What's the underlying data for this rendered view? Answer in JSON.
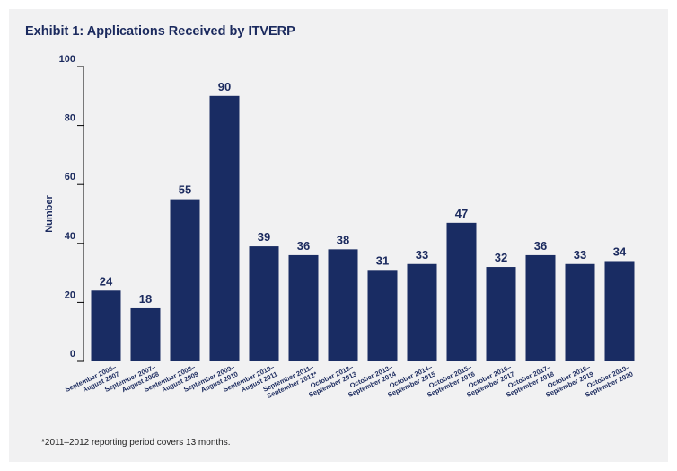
{
  "title": "Exhibit 1: Applications Received by ITVERP",
  "footnote": "*2011–2012 reporting period covers 13 months.",
  "colors": {
    "bar": "#192c63",
    "text": "#1b2a5e",
    "background": "#f1f1f2"
  },
  "chart_data": {
    "type": "bar",
    "title": "Exhibit 1: Applications Received by ITVERP",
    "xlabel": "",
    "ylabel": "Number",
    "ylim": [
      0,
      100
    ],
    "yticks": [
      0,
      20,
      40,
      60,
      80,
      100
    ],
    "grid": false,
    "categories": [
      [
        "September 2006–",
        "August 2007"
      ],
      [
        "September 2007–",
        "August 2008"
      ],
      [
        "September 2008–",
        "August 2009"
      ],
      [
        "September 2009–",
        "August 2010"
      ],
      [
        "September 2010–",
        "August 2011"
      ],
      [
        "September 2011–",
        "September 2012*"
      ],
      [
        "October 2012–",
        "September 2013"
      ],
      [
        "October 2013–",
        "September 2014"
      ],
      [
        "October 2014–",
        "September 2015"
      ],
      [
        "October 2015–",
        "September 2016"
      ],
      [
        "October 2016–",
        "September 2017"
      ],
      [
        "October 2017–",
        "September 2018"
      ],
      [
        "October 2018–",
        "September 2019"
      ],
      [
        "October 2019–",
        "September 2020"
      ]
    ],
    "values": [
      24,
      18,
      55,
      90,
      39,
      36,
      38,
      31,
      33,
      47,
      32,
      36,
      33,
      34
    ]
  }
}
